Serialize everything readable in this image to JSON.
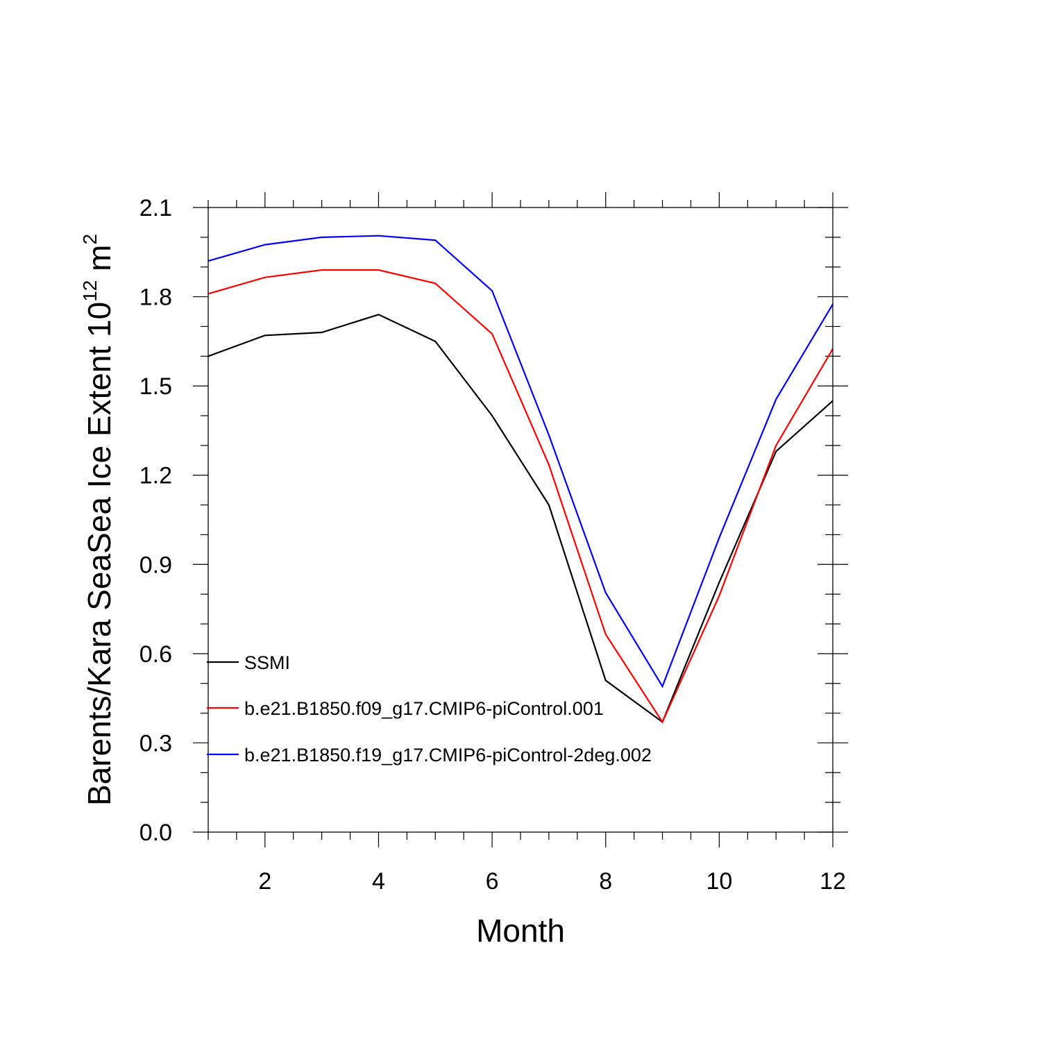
{
  "chart_data": {
    "type": "line",
    "title": "",
    "xlabel": "Month",
    "ylabel": "Barents/Kara SeaSea Ice Extent",
    "ylabel_unit": {
      "base": "10",
      "base_exp": "12",
      "unit": "m",
      "unit_exp": "2"
    },
    "xlim": [
      1,
      12
    ],
    "ylim": [
      0.0,
      2.1
    ],
    "x_ticks": [
      2,
      4,
      6,
      8,
      10,
      12
    ],
    "x_tick_labels": [
      "2",
      "4",
      "6",
      "8",
      "10",
      "12"
    ],
    "y_ticks": [
      0.0,
      0.3,
      0.6,
      0.9,
      1.2,
      1.5,
      1.8,
      2.1
    ],
    "y_tick_labels": [
      "0.0",
      "0.3",
      "0.6",
      "0.9",
      "1.2",
      "1.5",
      "1.8",
      "2.1"
    ],
    "x_minor_step": 0.5,
    "y_minor_step": 0.1,
    "grid": false,
    "legend_position": "left",
    "x": [
      1,
      2,
      3,
      4,
      5,
      6,
      7,
      8,
      9,
      10,
      11,
      12
    ],
    "series": [
      {
        "name": "SSMI",
        "color": "#000000",
        "values": [
          1.6,
          1.67,
          1.68,
          1.74,
          1.65,
          1.4,
          1.1,
          0.51,
          0.37,
          0.84,
          1.28,
          1.45
        ]
      },
      {
        "name": "b.e21.B1850.f09_g17.CMIP6-piControl.001",
        "color": "#ff0000",
        "values": [
          1.81,
          1.865,
          1.89,
          1.89,
          1.845,
          1.675,
          1.235,
          0.665,
          0.37,
          0.795,
          1.3,
          1.625
        ]
      },
      {
        "name": "b.e21.B1850.f19_g17.CMIP6-piControl-2deg.002",
        "color": "#0000ff",
        "values": [
          1.92,
          1.975,
          2.0,
          2.005,
          1.99,
          1.82,
          1.335,
          0.805,
          0.49,
          0.99,
          1.455,
          1.775
        ]
      }
    ]
  }
}
